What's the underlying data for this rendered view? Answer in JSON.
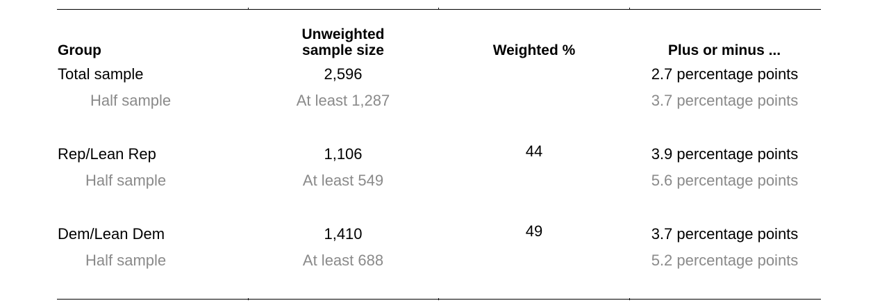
{
  "headers": {
    "group": "Group",
    "unweighted_line1": "Unweighted",
    "unweighted_line2": "sample size",
    "weighted": "Weighted %",
    "plus_minus": "Plus or minus ..."
  },
  "rows": [
    {
      "group": "Total sample",
      "unweighted": "2,596",
      "weighted": "",
      "moe": "2.7 percentage points",
      "sub": false
    },
    {
      "group": "Half sample",
      "unweighted": "At least 1,287",
      "weighted": "",
      "moe": "3.7 percentage points",
      "sub": true
    },
    {
      "group": "Rep/Lean Rep",
      "unweighted": "1,106",
      "weighted": "44",
      "moe": "3.9 percentage points",
      "sub": false
    },
    {
      "group": "Half sample",
      "unweighted": "At least 549",
      "weighted": "",
      "moe": "5.6 percentage points",
      "sub": true
    },
    {
      "group": "Dem/Lean Dem",
      "unweighted": "1,410",
      "weighted": "49",
      "moe": "3.7 percentage points",
      "sub": false
    },
    {
      "group": "Half sample",
      "unweighted": "At least 688",
      "weighted": "",
      "moe": "5.2 percentage points",
      "sub": true
    }
  ]
}
